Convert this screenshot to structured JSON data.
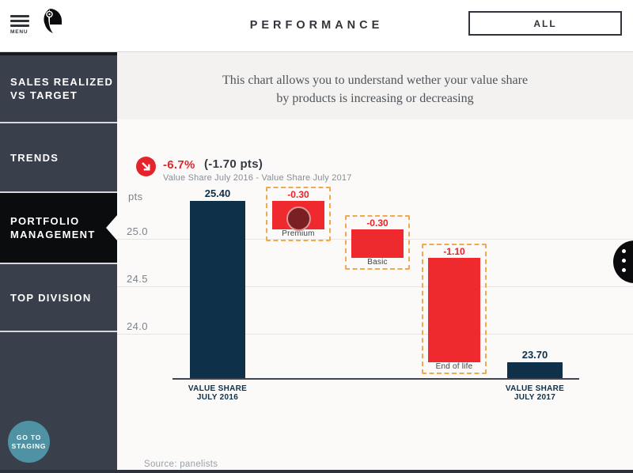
{
  "header": {
    "menu_label": "MENU",
    "title": "PERFORMANCE",
    "all_button": "ALL"
  },
  "sidebar": {
    "items": [
      {
        "lines": [
          "SALES REALIZED",
          "VS TARGET"
        ],
        "active": false
      },
      {
        "lines": [
          "TRENDS"
        ],
        "active": false
      },
      {
        "lines": [
          "PORTFOLIO",
          "MANAGEMENT"
        ],
        "active": true
      },
      {
        "lines": [
          "TOP DIVISION"
        ],
        "active": false
      }
    ],
    "staging_lines": [
      "GO TO",
      "STAGING"
    ]
  },
  "description": {
    "line1": "This chart allows you to understand wether your value share",
    "line2": "by products is increasing or decreasing"
  },
  "kpi": {
    "percent": "-6.7%",
    "pts": "(-1.70 pts)",
    "subtitle": "Value Share July 2016 - Value Share July 2017"
  },
  "chart_data": {
    "type": "bar",
    "subtype": "waterfall",
    "unit_label": "pts",
    "yticks": [
      {
        "value": 25.0,
        "label": "25.0"
      },
      {
        "value": 24.5,
        "label": "24.5"
      },
      {
        "value": 24.0,
        "label": "24.0"
      }
    ],
    "bars": [
      {
        "kind": "total",
        "name": "value-share-july-2016",
        "value": 25.4,
        "display": "25.40",
        "axis_lines": [
          "VALUE SHARE",
          "JULY 2016"
        ]
      },
      {
        "kind": "delta",
        "name": "premium",
        "value": -0.3,
        "display": "-0.30",
        "category": "Premium",
        "highlighted": true
      },
      {
        "kind": "delta",
        "name": "basic",
        "value": -0.3,
        "display": "-0.30",
        "category": "Basic",
        "highlighted": true
      },
      {
        "kind": "delta",
        "name": "end-of-life",
        "value": -1.1,
        "display": "-1.10",
        "category": "End of life",
        "highlighted": true
      },
      {
        "kind": "total",
        "name": "value-share-july-2017",
        "value": 23.7,
        "display": "23.70",
        "axis_lines": [
          "VALUE SHARE",
          "JULY 2017"
        ]
      }
    ]
  },
  "source": "Source: panelists",
  "colors": {
    "navy": "#0e3049",
    "red": "#ee2a2e",
    "red_text": "#e4232b",
    "dashed_border": "#f0a94e",
    "sidebar_bg": "#3a404b",
    "active_item_bg": "#0b0c0e",
    "teal": "#4e92a3",
    "grid": "#e6e4e2",
    "axis": "#41464e"
  }
}
